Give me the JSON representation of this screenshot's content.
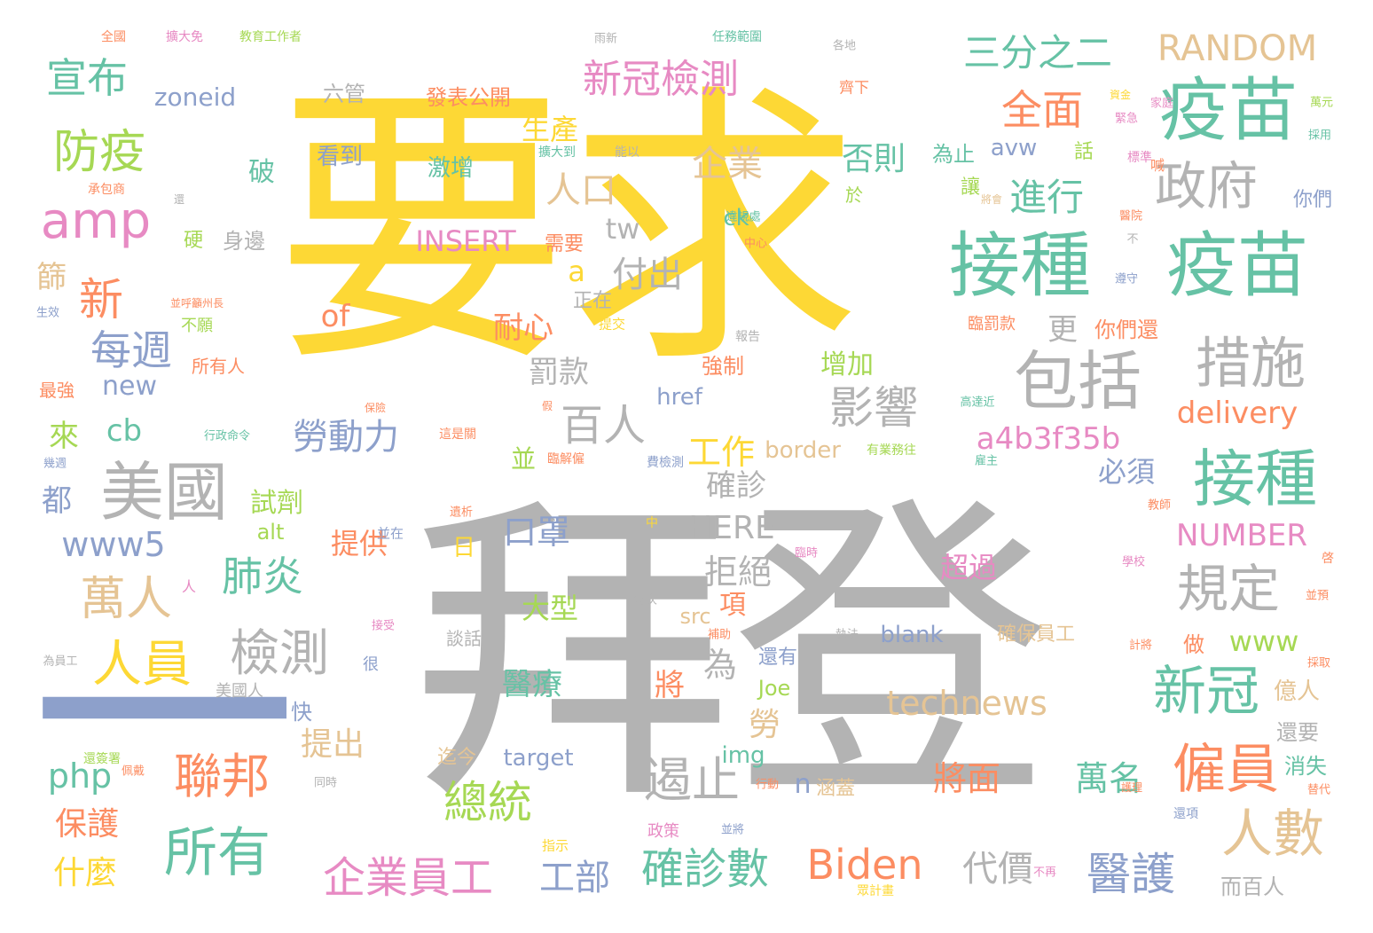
{
  "colors": {
    "yellow": "#fdd835",
    "gray": "#b3b3b3",
    "teal": "#66c2a5",
    "orange": "#fc8d62",
    "blue": "#8da0cb",
    "pink": "#e78ac3",
    "green": "#a6d854",
    "tan": "#e5c494"
  },
  "words": [
    {
      "text": "要求",
      "color": "yellow"
    },
    {
      "text": "拜登",
      "color": "gray"
    },
    {
      "text": "一",
      "color": "blue"
    },
    {
      "text": "疫苗",
      "color": "teal"
    },
    {
      "text": "接種",
      "color": "teal"
    },
    {
      "text": "疫苗",
      "color": "teal"
    },
    {
      "text": "政府",
      "color": "gray"
    },
    {
      "text": "措施",
      "color": "gray"
    },
    {
      "text": "包括",
      "color": "gray"
    },
    {
      "text": "美國",
      "color": "gray"
    },
    {
      "text": "接種",
      "color": "teal"
    },
    {
      "text": "amp",
      "color": "pink"
    },
    {
      "text": "防疫",
      "color": "green"
    },
    {
      "text": "宣布",
      "color": "teal"
    },
    {
      "text": "新冠檢測",
      "color": "pink"
    },
    {
      "text": "三分之二",
      "color": "teal"
    },
    {
      "text": "RANDOM",
      "color": "tan"
    },
    {
      "text": "全面",
      "color": "orange"
    },
    {
      "text": "進行",
      "color": "teal"
    },
    {
      "text": "人口",
      "color": "tan"
    },
    {
      "text": "企業",
      "color": "tan"
    },
    {
      "text": "否則",
      "color": "teal"
    },
    {
      "text": "生產",
      "color": "yellow"
    },
    {
      "text": "新",
      "color": "orange"
    },
    {
      "text": "每週",
      "color": "blue"
    },
    {
      "text": "萬人",
      "color": "tan"
    },
    {
      "text": "人員",
      "color": "yellow"
    },
    {
      "text": "檢測",
      "color": "gray"
    },
    {
      "text": "肺炎",
      "color": "teal"
    },
    {
      "text": "勞動力",
      "color": "blue"
    },
    {
      "text": "影響",
      "color": "gray"
    },
    {
      "text": "百人",
      "color": "gray"
    },
    {
      "text": "付出",
      "color": "gray"
    },
    {
      "text": "耐心",
      "color": "orange"
    },
    {
      "text": "罰款",
      "color": "gray"
    },
    {
      "text": "delivery",
      "color": "orange"
    },
    {
      "text": "a4b3f35b",
      "color": "pink"
    },
    {
      "text": "INSERT",
      "color": "pink"
    },
    {
      "text": "tw",
      "color": "gray"
    },
    {
      "text": "規定",
      "color": "gray"
    },
    {
      "text": "新冠",
      "color": "teal"
    },
    {
      "text": "僱員",
      "color": "orange"
    },
    {
      "text": "人數",
      "color": "tan"
    },
    {
      "text": "醫護",
      "color": "blue"
    },
    {
      "text": "遏止",
      "color": "gray"
    },
    {
      "text": "technews",
      "color": "tan"
    },
    {
      "text": "聯邦",
      "color": "orange"
    },
    {
      "text": "所有",
      "color": "teal"
    },
    {
      "text": "總統",
      "color": "green"
    },
    {
      "text": "企業員工",
      "color": "pink"
    },
    {
      "text": "確診數",
      "color": "teal"
    },
    {
      "text": "Biden",
      "color": "orange"
    },
    {
      "text": "代價",
      "color": "gray"
    },
    {
      "text": "工部",
      "color": "blue"
    },
    {
      "text": "將面",
      "color": "orange"
    },
    {
      "text": "萬名",
      "color": "teal"
    },
    {
      "text": "www5",
      "color": "blue"
    },
    {
      "text": "NUMBER",
      "color": "pink"
    },
    {
      "text": "HERE",
      "color": "gray"
    },
    {
      "text": "口罩",
      "color": "blue"
    },
    {
      "text": "拒絕",
      "color": "gray"
    },
    {
      "text": "工作",
      "color": "yellow"
    },
    {
      "text": "確診",
      "color": "gray"
    },
    {
      "text": "提供",
      "color": "orange"
    },
    {
      "text": "大型",
      "color": "green"
    },
    {
      "text": "超過",
      "color": "pink"
    },
    {
      "text": "必須",
      "color": "blue"
    },
    {
      "text": "www",
      "color": "green"
    },
    {
      "text": "醫療",
      "color": "teal"
    },
    {
      "text": "將",
      "color": "orange"
    },
    {
      "text": "為",
      "color": "gray"
    },
    {
      "text": "勞",
      "color": "tan"
    },
    {
      "text": "提出",
      "color": "tan"
    },
    {
      "text": "php",
      "color": "teal"
    },
    {
      "text": "保護",
      "color": "orange"
    },
    {
      "text": "什麼",
      "color": "yellow"
    },
    {
      "text": "來",
      "color": "green"
    },
    {
      "text": "cb",
      "color": "teal"
    },
    {
      "text": "都",
      "color": "blue"
    },
    {
      "text": "new",
      "color": "blue"
    },
    {
      "text": "試劑",
      "color": "green"
    },
    {
      "text": "增加",
      "color": "green"
    },
    {
      "text": "強制",
      "color": "orange"
    },
    {
      "text": "href",
      "color": "blue"
    },
    {
      "text": "border",
      "color": "tan"
    },
    {
      "text": "zoneid",
      "color": "blue"
    },
    {
      "text": "發表公開",
      "color": "orange"
    },
    {
      "text": "六管",
      "color": "gray"
    },
    {
      "text": "看到",
      "color": "blue"
    },
    {
      "text": "激增",
      "color": "teal"
    },
    {
      "text": "破",
      "color": "teal"
    },
    {
      "text": "of",
      "color": "orange"
    },
    {
      "text": "a",
      "color": "yellow"
    },
    {
      "text": "更",
      "color": "gray"
    },
    {
      "text": "blank",
      "color": "blue"
    },
    {
      "text": "avw",
      "color": "blue"
    },
    {
      "text": "ck",
      "color": "teal"
    },
    {
      "text": "話",
      "color": "green"
    },
    {
      "text": "為止",
      "color": "teal"
    },
    {
      "text": "讓",
      "color": "green"
    },
    {
      "text": "於",
      "color": "green"
    },
    {
      "text": "你們",
      "color": "blue"
    },
    {
      "text": "你們還",
      "color": "orange"
    },
    {
      "text": "需要",
      "color": "orange"
    },
    {
      "text": "身邊",
      "color": "gray"
    },
    {
      "text": "硬",
      "color": "green"
    },
    {
      "text": "篩",
      "color": "tan"
    },
    {
      "text": "正在",
      "color": "gray"
    },
    {
      "text": "並",
      "color": "green"
    },
    {
      "text": "日",
      "color": "yellow"
    },
    {
      "text": "alt",
      "color": "green"
    },
    {
      "text": "target",
      "color": "blue"
    },
    {
      "text": "img",
      "color": "teal"
    },
    {
      "text": "Joe",
      "color": "green"
    },
    {
      "text": "還有",
      "color": "blue"
    },
    {
      "text": "src",
      "color": "tan"
    },
    {
      "text": "確保員工",
      "color": "tan"
    },
    {
      "text": "做",
      "color": "orange"
    },
    {
      "text": "億人",
      "color": "tan"
    },
    {
      "text": "還要",
      "color": "gray"
    },
    {
      "text": "消失",
      "color": "teal"
    },
    {
      "text": "而百人",
      "color": "gray"
    },
    {
      "text": "快",
      "color": "blue"
    },
    {
      "text": "迄今",
      "color": "tan"
    },
    {
      "text": "涵蓋",
      "color": "tan"
    },
    {
      "text": "政策",
      "color": "pink"
    },
    {
      "text": "n",
      "color": "blue"
    },
    {
      "text": "所有人",
      "color": "orange"
    },
    {
      "text": "不願",
      "color": "green"
    },
    {
      "text": "最強",
      "color": "orange"
    },
    {
      "text": "美國人",
      "color": "gray"
    },
    {
      "text": "很",
      "color": "blue"
    },
    {
      "text": "談話",
      "color": "gray"
    },
    {
      "text": "人",
      "color": "pink"
    },
    {
      "text": "項",
      "color": "orange"
    },
    {
      "text": "臨罰款",
      "color": "orange"
    },
    {
      "text": "全國",
      "color": "orange"
    },
    {
      "text": "擴大免",
      "color": "pink"
    },
    {
      "text": "教育工作者",
      "color": "green"
    },
    {
      "text": "雨新",
      "color": "gray"
    },
    {
      "text": "任務範圍",
      "color": "teal"
    },
    {
      "text": "各地",
      "color": "gray"
    },
    {
      "text": "齊下",
      "color": "orange"
    },
    {
      "text": "家庭",
      "color": "pink"
    },
    {
      "text": "資金",
      "color": "yellow"
    },
    {
      "text": "緊急",
      "color": "pink"
    },
    {
      "text": "萬元",
      "color": "green"
    },
    {
      "text": "採用",
      "color": "teal"
    },
    {
      "text": "標準",
      "color": "pink"
    },
    {
      "text": "喊",
      "color": "orange"
    },
    {
      "text": "醫院",
      "color": "orange"
    },
    {
      "text": "遵守",
      "color": "blue"
    },
    {
      "text": "不",
      "color": "gray"
    },
    {
      "text": "擴大到",
      "color": "teal"
    },
    {
      "text": "能以",
      "color": "gray"
    },
    {
      "text": "承包商",
      "color": "orange"
    },
    {
      "text": "還",
      "color": "gray"
    },
    {
      "text": "違規處",
      "color": "teal"
    },
    {
      "text": "中心",
      "color": "orange"
    },
    {
      "text": "將會",
      "color": "tan"
    },
    {
      "text": "報告",
      "color": "gray"
    },
    {
      "text": "提交",
      "color": "yellow"
    },
    {
      "text": "生效",
      "color": "blue"
    },
    {
      "text": "並呼籲州長",
      "color": "orange"
    },
    {
      "text": "保險",
      "color": "orange"
    },
    {
      "text": "行政命令",
      "color": "teal"
    },
    {
      "text": "這是關",
      "color": "orange"
    },
    {
      "text": "假",
      "color": "orange"
    },
    {
      "text": "臨解僱",
      "color": "orange"
    },
    {
      "text": "費檢測",
      "color": "blue"
    },
    {
      "text": "有業務往",
      "color": "green"
    },
    {
      "text": "高達近",
      "color": "teal"
    },
    {
      "text": "雇主",
      "color": "teal"
    },
    {
      "text": "幾週",
      "color": "blue"
    },
    {
      "text": "遺析",
      "color": "orange"
    },
    {
      "text": "並在",
      "color": "blue"
    },
    {
      "text": "中",
      "color": "yellow"
    },
    {
      "text": "臨時",
      "color": "pink"
    },
    {
      "text": "學校",
      "color": "pink"
    },
    {
      "text": "教師",
      "color": "orange"
    },
    {
      "text": "啓",
      "color": "orange"
    },
    {
      "text": "並預",
      "color": "orange"
    },
    {
      "text": "每次",
      "color": "gray"
    },
    {
      "text": "接受",
      "color": "pink"
    },
    {
      "text": "補助",
      "color": "orange"
    },
    {
      "text": "執法",
      "color": "gray"
    },
    {
      "text": "計將",
      "color": "orange"
    },
    {
      "text": "採取",
      "color": "orange"
    },
    {
      "text": "為員工",
      "color": "gray"
    },
    {
      "text": "還簽署",
      "color": "green"
    },
    {
      "text": "佩戴",
      "color": "orange"
    },
    {
      "text": "同時",
      "color": "gray"
    },
    {
      "text": "行動",
      "color": "orange"
    },
    {
      "text": "護理",
      "color": "orange"
    },
    {
      "text": "替代",
      "color": "orange"
    },
    {
      "text": "還項",
      "color": "blue"
    },
    {
      "text": "並將",
      "color": "blue"
    },
    {
      "text": "不再",
      "color": "pink"
    },
    {
      "text": "指示",
      "color": "yellow"
    },
    {
      "text": "眾計畫",
      "color": "yellow"
    }
  ]
}
